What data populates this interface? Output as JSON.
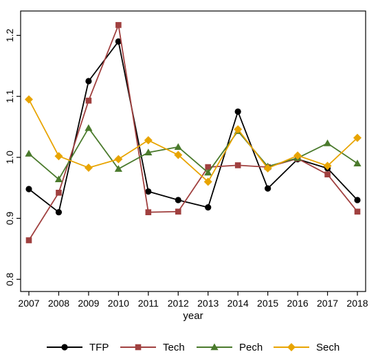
{
  "chart_data": {
    "type": "line",
    "title": "",
    "xlabel": "year",
    "ylabel": "",
    "x": [
      2007,
      2008,
      2009,
      2010,
      2011,
      2012,
      2013,
      2014,
      2015,
      2016,
      2017,
      2018
    ],
    "x_tick_labels": [
      "2007",
      "2008",
      "2009",
      "2010",
      "2011",
      "2012",
      "2013",
      "2014",
      "2015",
      "2016",
      "2017",
      "2018"
    ],
    "ylim": [
      0.78,
      1.24
    ],
    "y_ticks": [
      0.8,
      0.9,
      1.0,
      1.1,
      1.2
    ],
    "y_tick_labels": [
      "0.8",
      "0.9",
      "1.0",
      "1.1",
      "1.2"
    ],
    "grid": false,
    "legend_position": "bottom",
    "series": [
      {
        "name": "TFP",
        "color": "#000000",
        "marker": "circle",
        "values": [
          0.948,
          0.91,
          1.125,
          1.19,
          0.944,
          0.93,
          0.918,
          1.075,
          0.949,
          0.997,
          0.982,
          0.93
        ]
      },
      {
        "name": "Tech",
        "color": "#a0403f",
        "marker": "square",
        "values": [
          0.864,
          0.942,
          1.093,
          1.217,
          0.91,
          0.911,
          0.984,
          0.987,
          0.984,
          0.998,
          0.972,
          0.911
        ]
      },
      {
        "name": "Pech",
        "color": "#4a7a2c",
        "marker": "triangle",
        "values": [
          1.006,
          0.964,
          1.048,
          0.981,
          1.008,
          1.017,
          0.975,
          1.043,
          0.985,
          0.999,
          1.023,
          0.99
        ]
      },
      {
        "name": "Sech",
        "color": "#e8a400",
        "marker": "diamond",
        "values": [
          1.095,
          1.002,
          0.983,
          0.997,
          1.028,
          1.004,
          0.96,
          1.046,
          0.982,
          1.003,
          0.986,
          1.032
        ]
      }
    ]
  }
}
